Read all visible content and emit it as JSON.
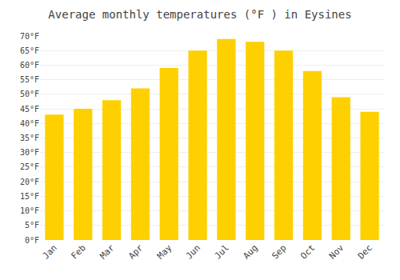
{
  "chart_data": {
    "type": "bar",
    "title": "Average monthly temperatures (°F ) in Eysines",
    "categories": [
      "Jan",
      "Feb",
      "Mar",
      "Apr",
      "May",
      "Jun",
      "Jul",
      "Aug",
      "Sep",
      "Oct",
      "Nov",
      "Dec"
    ],
    "values": [
      43,
      45,
      48,
      52,
      59,
      65,
      69,
      68,
      65,
      58,
      49,
      44
    ],
    "color": "#FFD000",
    "ylim": [
      0,
      70
    ],
    "yticks": [
      {
        "value": 0,
        "label": "0°F"
      },
      {
        "value": 5,
        "label": "5°F"
      },
      {
        "value": 10,
        "label": "10°F"
      },
      {
        "value": 15,
        "label": "15°F"
      },
      {
        "value": 20,
        "label": "20°F"
      },
      {
        "value": 25,
        "label": "25°F"
      },
      {
        "value": 30,
        "label": "30°F"
      },
      {
        "value": 35,
        "label": "35°F"
      },
      {
        "value": 40,
        "label": "40°F"
      },
      {
        "value": 45,
        "label": "45°F"
      },
      {
        "value": 50,
        "label": "50°F"
      },
      {
        "value": 55,
        "label": "55°F"
      },
      {
        "value": 60,
        "label": "60°F"
      },
      {
        "value": 65,
        "label": "65°F"
      },
      {
        "value": 70,
        "label": "70°F"
      }
    ],
    "grid": true
  }
}
